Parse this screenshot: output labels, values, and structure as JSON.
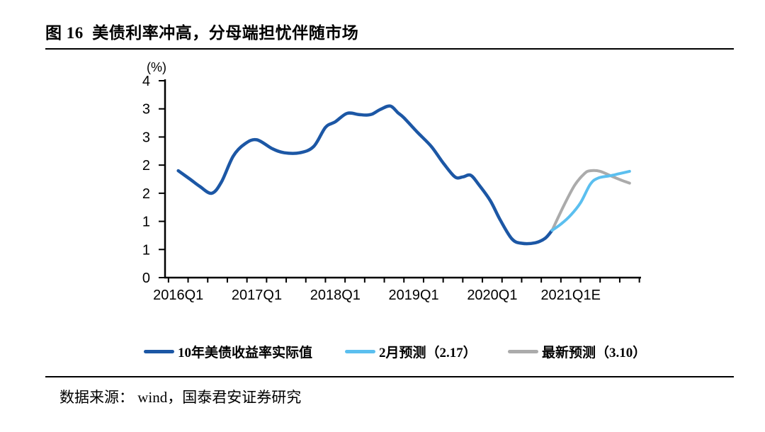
{
  "figure": {
    "source": "数据来源： wind，国泰君安证券研究"
  },
  "chart_data": {
    "type": "line",
    "title": "图 16  美债利率冲高，分母端担忧伴随市场",
    "unit_label": "(%)",
    "x_unit": "quarters since 2016Q1 (0 = 2016Q1)",
    "grid": false,
    "legend_position": "bottom",
    "x_axis": {
      "tick_labels": [
        "2016Q1",
        "2017Q1",
        "2018Q1",
        "2019Q1",
        "2020Q1",
        "2021Q1E"
      ],
      "tick_positions": [
        0,
        4,
        8,
        12,
        16,
        20
      ],
      "minor_ticks": "quarterly"
    },
    "y_axis": {
      "min": 0,
      "max": 3.5,
      "step": 0.5,
      "tick_labels_bottom_to_top": [
        "0",
        "1",
        "1",
        "2",
        "2",
        "3",
        "3",
        "4"
      ],
      "note": "axis runs 0 to 3.5% in 0.5 steps; labels shown rounded to whole numbers"
    },
    "series": [
      {
        "name": "10年美债收益率实际值",
        "color": "#1C57A5",
        "points": [
          [
            0,
            1.9
          ],
          [
            0.6,
            1.75
          ],
          [
            1.1,
            1.62
          ],
          [
            1.7,
            1.5
          ],
          [
            2.2,
            1.7
          ],
          [
            2.8,
            2.16
          ],
          [
            3.4,
            2.38
          ],
          [
            4.0,
            2.45
          ],
          [
            4.8,
            2.29
          ],
          [
            5.4,
            2.22
          ],
          [
            6.2,
            2.22
          ],
          [
            6.9,
            2.33
          ],
          [
            7.5,
            2.67
          ],
          [
            8.0,
            2.77
          ],
          [
            8.6,
            2.92
          ],
          [
            9.2,
            2.9
          ],
          [
            9.6,
            2.89
          ],
          [
            9.9,
            2.91
          ],
          [
            10.3,
            2.99
          ],
          [
            10.8,
            3.05
          ],
          [
            11.2,
            2.93
          ],
          [
            11.5,
            2.84
          ],
          [
            12.2,
            2.58
          ],
          [
            12.9,
            2.33
          ],
          [
            13.5,
            2.04
          ],
          [
            14.1,
            1.79
          ],
          [
            14.5,
            1.79
          ],
          [
            14.9,
            1.82
          ],
          [
            15.3,
            1.66
          ],
          [
            15.9,
            1.37
          ],
          [
            16.4,
            1.03
          ],
          [
            17.0,
            0.69
          ],
          [
            17.5,
            0.61
          ],
          [
            18.2,
            0.62
          ],
          [
            18.7,
            0.7
          ],
          [
            19.05,
            0.84
          ]
        ]
      },
      {
        "name": "2月预测（2.17）",
        "color": "#5BBFEF",
        "points": [
          [
            19.05,
            0.84
          ],
          [
            19.5,
            0.95
          ],
          [
            20.0,
            1.11
          ],
          [
            20.5,
            1.33
          ],
          [
            21.0,
            1.66
          ],
          [
            21.4,
            1.77
          ],
          [
            22.0,
            1.81
          ],
          [
            22.5,
            1.85
          ],
          [
            23.0,
            1.89
          ]
        ]
      },
      {
        "name": "最新预测（3.10）",
        "color": "#ABABAB",
        "points": [
          [
            19.05,
            0.84
          ],
          [
            19.65,
            1.28
          ],
          [
            20.2,
            1.64
          ],
          [
            20.7,
            1.85
          ],
          [
            21.0,
            1.9
          ],
          [
            21.5,
            1.89
          ],
          [
            22.1,
            1.8
          ],
          [
            22.6,
            1.73
          ],
          [
            23.0,
            1.68
          ]
        ]
      }
    ]
  }
}
